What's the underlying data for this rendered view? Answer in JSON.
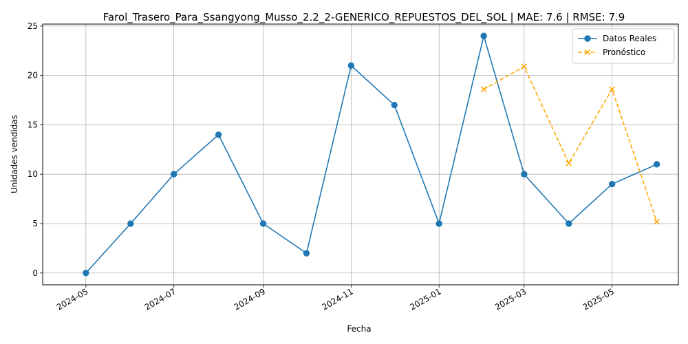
{
  "chart_data": {
    "type": "line",
    "title": "Farol_Trasero_Para_Ssangyong_Musso_2.2_2-GENERICO_REPUESTOS_DEL_SOL | MAE: 7.6 | RMSE: 7.9",
    "xlabel": "Fecha",
    "ylabel": "Unidades vendidas",
    "xlim": [
      "2024-04-01",
      "2025-06-16"
    ],
    "ylim": [
      -1.2,
      25.2
    ],
    "x_ticks": [
      "2024-05",
      "2024-07",
      "2024-09",
      "2024-11",
      "2025-01",
      "2025-03",
      "2025-05"
    ],
    "y_ticks": [
      0,
      5,
      10,
      15,
      20,
      25
    ],
    "grid": true,
    "legend_position": "top-right",
    "series": [
      {
        "name": "Datos Reales",
        "color": "#1f77b4",
        "line_style": "solid",
        "marker": "circle",
        "points": [
          {
            "x": "2024-05-01",
            "y": 0
          },
          {
            "x": "2024-06-01",
            "y": 5
          },
          {
            "x": "2024-07-01",
            "y": 10
          },
          {
            "x": "2024-08-01",
            "y": 14
          },
          {
            "x": "2024-09-01",
            "y": 5
          },
          {
            "x": "2024-10-01",
            "y": 2
          },
          {
            "x": "2024-11-01",
            "y": 21
          },
          {
            "x": "2024-12-01",
            "y": 17
          },
          {
            "x": "2025-01-01",
            "y": 5
          },
          {
            "x": "2025-02-01",
            "y": 24
          },
          {
            "x": "2025-03-01",
            "y": 10
          },
          {
            "x": "2025-04-01",
            "y": 5
          },
          {
            "x": "2025-05-01",
            "y": 9
          },
          {
            "x": "2025-06-01",
            "y": 11
          }
        ]
      },
      {
        "name": "Pronóstico",
        "color": "#ffa500",
        "line_style": "dashed",
        "marker": "x",
        "points": [
          {
            "x": "2025-02-01",
            "y": 18.6
          },
          {
            "x": "2025-03-01",
            "y": 20.9
          },
          {
            "x": "2025-04-01",
            "y": 11.1
          },
          {
            "x": "2025-05-01",
            "y": 18.6
          },
          {
            "x": "2025-06-01",
            "y": 5.2
          }
        ]
      }
    ]
  }
}
